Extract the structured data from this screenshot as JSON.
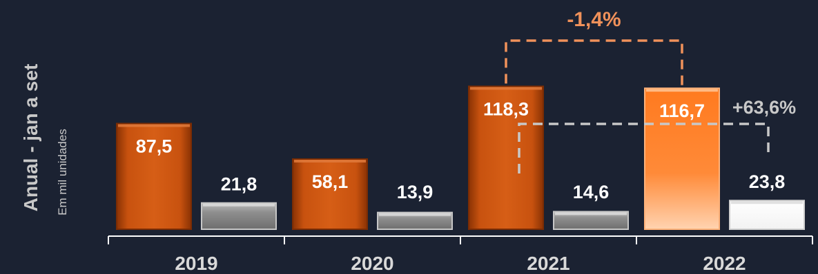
{
  "chart_data": {
    "type": "bar",
    "ylabel": "Anual - jan a set",
    "unit_label": "Em mil unidades",
    "categories": [
      "2019",
      "2020",
      "2021",
      "2022"
    ],
    "series": [
      {
        "values": [
          87.5,
          58.1,
          118.3,
          116.7
        ],
        "labels": [
          "87,5",
          "58,1",
          "118,3",
          "116,7"
        ]
      },
      {
        "values": [
          21.8,
          13.9,
          14.6,
          23.8
        ],
        "labels": [
          "21,8",
          "13,9",
          "14,6",
          "23,8"
        ]
      }
    ],
    "annotations": [
      {
        "text": "-1,4%",
        "series": 0,
        "from": "2021",
        "to": "2022",
        "color": "#f0915a"
      },
      {
        "text": "+63,6%",
        "series": 1,
        "from": "2021",
        "to": "2022",
        "color": "#c8c8c8"
      }
    ],
    "colors": {
      "series0": "#c8520f",
      "series0_highlight": "#ff7a1f",
      "series1": "#8f8f8f",
      "series1_highlight": "#ffffff",
      "axis": "#ffffff",
      "background": "#1b2232"
    }
  }
}
